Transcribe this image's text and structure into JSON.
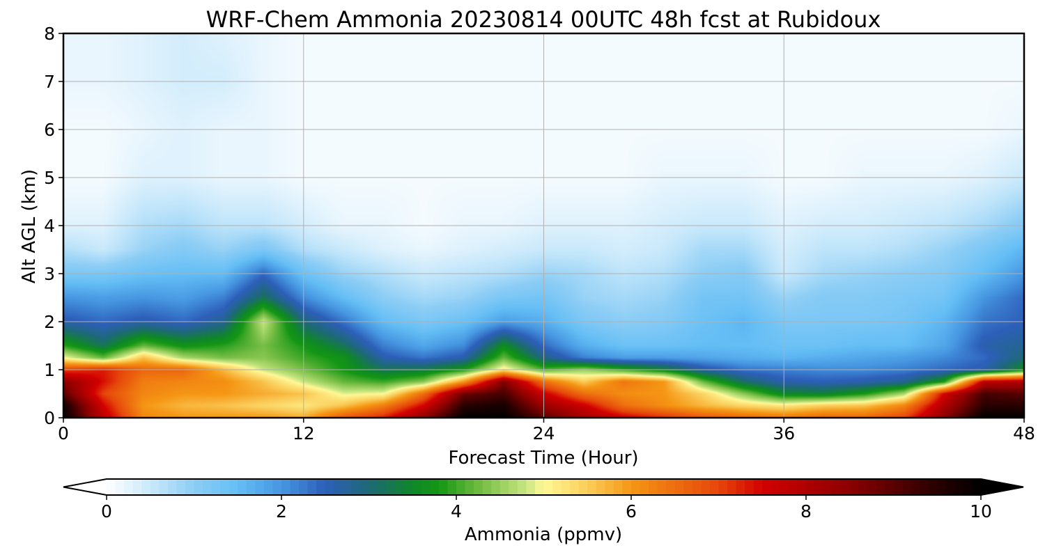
{
  "chart_data": {
    "type": "heatmap",
    "title": "WRF-Chem Ammonia  20230814 00UTC 48h fcst at Rubidoux",
    "xlabel": "Forecast Time (Hour)",
    "ylabel": "Alt AGL (km)",
    "xlim": [
      0,
      48
    ],
    "ylim": [
      0,
      8
    ],
    "x_ticks": [
      "0",
      "12",
      "24",
      "36",
      "48"
    ],
    "y_ticks": [
      "0",
      "1",
      "2",
      "3",
      "4",
      "5",
      "6",
      "7",
      "8"
    ],
    "grid": true,
    "colorbar": {
      "label": "Ammonia  (ppmv)",
      "range": [
        0,
        10
      ],
      "ticks": [
        "0",
        "2",
        "4",
        "6",
        "8",
        "10"
      ],
      "extend": "both"
    },
    "hours": [
      0,
      2,
      4,
      6,
      8,
      10,
      12,
      14,
      16,
      18,
      20,
      22,
      24,
      26,
      28,
      30,
      32,
      34,
      36,
      38,
      40,
      42,
      44,
      46,
      48
    ],
    "altitudes_km": [
      0.0,
      0.25,
      0.5,
      0.75,
      1.0,
      1.25,
      1.5,
      2.0,
      2.5,
      3.0,
      3.5,
      4.0,
      5.0,
      6.0,
      7.0,
      8.0
    ],
    "ammonia_ppmv": [
      [
        10.0,
        7.8,
        6.2,
        6.0,
        6.0,
        6.0,
        5.8,
        6.8,
        7.3,
        8.5,
        10.0,
        10.0,
        9.0,
        8.2,
        7.6,
        7.2,
        6.8,
        6.6,
        6.4,
        6.6,
        6.6,
        7.0,
        8.5,
        10.0,
        10.0
      ],
      [
        9.8,
        7.5,
        6.0,
        5.7,
        5.6,
        5.4,
        5.2,
        5.6,
        6.3,
        7.5,
        9.5,
        9.7,
        8.3,
        7.6,
        6.5,
        6.1,
        5.7,
        5.4,
        5.2,
        5.5,
        5.6,
        6.2,
        8.0,
        9.5,
        9.5
      ],
      [
        9.0,
        7.0,
        6.2,
        6.0,
        6.0,
        5.8,
        5.6,
        4.9,
        5.0,
        6.5,
        8.8,
        9.2,
        7.6,
        6.5,
        6.1,
        6.0,
        5.4,
        4.4,
        3.5,
        3.4,
        3.8,
        4.6,
        7.5,
        9.2,
        9.0
      ],
      [
        8.5,
        7.4,
        6.3,
        6.2,
        6.1,
        5.6,
        4.8,
        4.2,
        4.0,
        4.4,
        6.0,
        8.6,
        6.5,
        5.5,
        6.4,
        6.0,
        4.2,
        3.1,
        2.6,
        2.5,
        2.6,
        2.8,
        3.8,
        7.8,
        8.0
      ],
      [
        7.0,
        7.3,
        6.6,
        6.6,
        5.7,
        4.8,
        4.3,
        3.8,
        3.2,
        3.3,
        3.8,
        5.2,
        4.1,
        4.5,
        4.0,
        3.5,
        2.7,
        2.3,
        2.2,
        2.1,
        2.1,
        2.2,
        2.4,
        2.6,
        3.6
      ],
      [
        5.0,
        4.2,
        5.6,
        4.6,
        4.3,
        4.4,
        4.0,
        3.7,
        2.6,
        2.3,
        2.6,
        4.2,
        2.9,
        2.2,
        1.9,
        1.9,
        1.8,
        1.7,
        1.6,
        1.7,
        1.8,
        1.9,
        2.1,
        2.4,
        3.0
      ],
      [
        3.9,
        3.2,
        4.2,
        3.7,
        3.9,
        4.3,
        3.8,
        3.2,
        2.2,
        1.8,
        2.1,
        3.6,
        2.4,
        1.7,
        1.4,
        1.4,
        1.5,
        1.5,
        1.4,
        1.4,
        1.5,
        1.5,
        1.8,
        2.6,
        2.8
      ],
      [
        2.6,
        2.4,
        2.6,
        2.4,
        2.8,
        4.8,
        3.0,
        2.3,
        1.5,
        1.2,
        1.4,
        1.9,
        1.7,
        1.2,
        1.0,
        1.1,
        1.4,
        1.6,
        1.2,
        1.2,
        1.2,
        1.3,
        1.6,
        2.3,
        2.5
      ],
      [
        2.0,
        1.9,
        2.0,
        1.9,
        2.2,
        3.2,
        2.1,
        1.5,
        1.0,
        0.8,
        0.9,
        1.2,
        1.3,
        0.9,
        0.8,
        0.9,
        1.3,
        1.3,
        0.9,
        1.1,
        1.1,
        1.2,
        1.3,
        2.0,
        2.4
      ],
      [
        1.2,
        1.2,
        1.4,
        1.5,
        1.5,
        2.4,
        1.4,
        0.9,
        0.7,
        0.5,
        0.6,
        0.7,
        0.9,
        0.8,
        0.6,
        0.7,
        1.0,
        1.1,
        0.5,
        0.8,
        0.9,
        1.0,
        1.1,
        1.5,
        2.0
      ],
      [
        0.7,
        0.5,
        0.9,
        1.1,
        0.9,
        1.2,
        0.7,
        0.5,
        0.3,
        0.2,
        0.3,
        0.4,
        0.5,
        0.5,
        0.4,
        0.5,
        0.8,
        0.8,
        0.4,
        0.6,
        0.6,
        0.7,
        0.9,
        1.2,
        1.6
      ],
      [
        0.3,
        0.3,
        0.7,
        0.8,
        0.6,
        0.6,
        0.4,
        0.2,
        0.2,
        0.1,
        0.2,
        0.2,
        0.3,
        0.3,
        0.3,
        0.4,
        0.5,
        0.5,
        0.3,
        0.4,
        0.4,
        0.5,
        0.6,
        0.8,
        1.1
      ],
      [
        0.1,
        0.1,
        0.3,
        0.3,
        0.2,
        0.2,
        0.1,
        0.1,
        0.1,
        0.1,
        0.1,
        0.1,
        0.1,
        0.1,
        0.1,
        0.2,
        0.2,
        0.2,
        0.1,
        0.1,
        0.2,
        0.2,
        0.2,
        0.3,
        0.5
      ],
      [
        0.1,
        0.1,
        0.2,
        0.3,
        0.2,
        0.2,
        0.1,
        0.1,
        0.1,
        0.1,
        0.1,
        0.1,
        0.1,
        0.1,
        0.1,
        0.1,
        0.1,
        0.1,
        0.1,
        0.1,
        0.1,
        0.1,
        0.1,
        0.1,
        0.2
      ],
      [
        0.2,
        0.2,
        0.3,
        0.4,
        0.4,
        0.2,
        0.1,
        0.1,
        0.1,
        0.1,
        0.1,
        0.1,
        0.1,
        0.1,
        0.1,
        0.1,
        0.1,
        0.1,
        0.1,
        0.1,
        0.1,
        0.1,
        0.1,
        0.1,
        0.1
      ],
      [
        0.2,
        0.2,
        0.3,
        0.4,
        0.3,
        0.2,
        0.1,
        0.1,
        0.1,
        0.1,
        0.1,
        0.1,
        0.1,
        0.1,
        0.1,
        0.1,
        0.1,
        0.1,
        0.1,
        0.1,
        0.1,
        0.1,
        0.1,
        0.1,
        0.1
      ]
    ]
  }
}
